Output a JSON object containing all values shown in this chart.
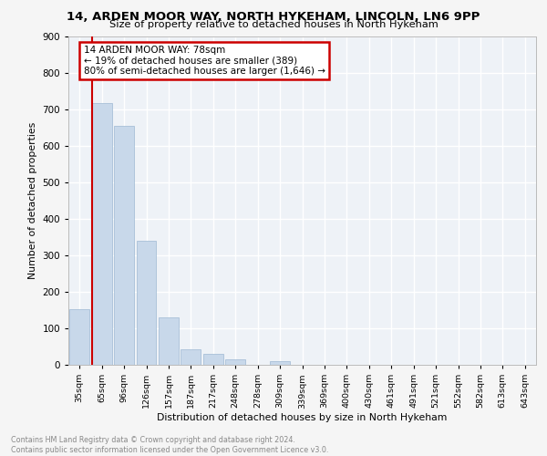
{
  "title1": "14, ARDEN MOOR WAY, NORTH HYKEHAM, LINCOLN, LN6 9PP",
  "title2": "Size of property relative to detached houses in North Hykeham",
  "xlabel": "Distribution of detached houses by size in North Hykeham",
  "ylabel": "Number of detached properties",
  "categories": [
    "35sqm",
    "65sqm",
    "96sqm",
    "126sqm",
    "157sqm",
    "187sqm",
    "217sqm",
    "248sqm",
    "278sqm",
    "309sqm",
    "339sqm",
    "369sqm",
    "400sqm",
    "430sqm",
    "461sqm",
    "491sqm",
    "521sqm",
    "552sqm",
    "582sqm",
    "613sqm",
    "643sqm"
  ],
  "values": [
    152,
    717,
    655,
    340,
    131,
    43,
    30,
    14,
    0,
    9,
    0,
    0,
    0,
    0,
    0,
    0,
    0,
    0,
    0,
    0,
    0
  ],
  "bar_color": "#c8d8ea",
  "bar_edge_color": "#a8c0d8",
  "vline_color": "#cc0000",
  "annotation_text": "14 ARDEN MOOR WAY: 78sqm\n← 19% of detached houses are smaller (389)\n80% of semi-detached houses are larger (1,646) →",
  "annotation_box_color": "#ffffff",
  "annotation_box_edge_color": "#cc0000",
  "ylim": [
    0,
    900
  ],
  "yticks": [
    0,
    100,
    200,
    300,
    400,
    500,
    600,
    700,
    800,
    900
  ],
  "footer_text": "Contains HM Land Registry data © Crown copyright and database right 2024.\nContains public sector information licensed under the Open Government Licence v3.0.",
  "background_color": "#eef2f7",
  "fig_background": "#f5f5f5",
  "grid_color": "#ffffff"
}
